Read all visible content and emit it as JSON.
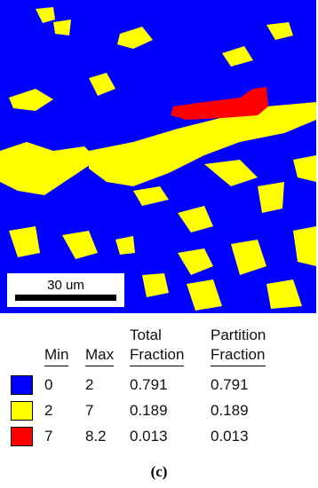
{
  "scale_bar": {
    "label": "30 um"
  },
  "table": {
    "headers": [
      "Min",
      "Max",
      "Total Fraction",
      "Partition Fraction"
    ],
    "rows": [
      {
        "color": "#0000ff",
        "cells": [
          0,
          2,
          0.791,
          0.791
        ]
      },
      {
        "color": "#ffff00",
        "cells": [
          2,
          7,
          0.189,
          0.189
        ]
      },
      {
        "color": "#ff0000",
        "cells": [
          7,
          8.2,
          0.013,
          0.013
        ]
      }
    ]
  },
  "caption": "(c)"
}
